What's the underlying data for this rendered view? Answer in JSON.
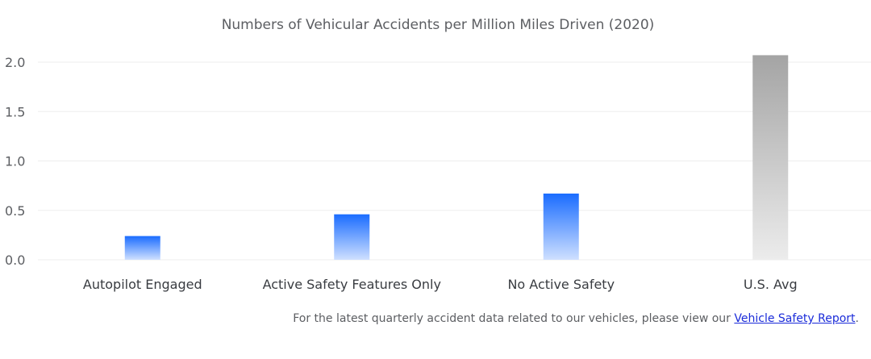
{
  "chart_data": {
    "type": "bar",
    "title": "Numbers of Vehicular Accidents per Million Miles Driven (2020)",
    "xlabel": "",
    "ylabel": "",
    "categories": [
      "Autopilot Engaged",
      "Active Safety Features Only",
      "No Active Safety",
      "U.S. Avg"
    ],
    "values": [
      0.24,
      0.46,
      0.67,
      2.07
    ],
    "ylim": [
      0,
      2.0
    ],
    "yticks": [
      "0.0",
      "0.5",
      "1.0",
      "1.5",
      "2.0"
    ],
    "grid": true,
    "colors": {
      "tesla_top": "#1a6cff",
      "tesla_bottom": "#cfe0ff",
      "avg_top": "#a4a4a4",
      "avg_bottom": "#ececec"
    }
  },
  "footnote": {
    "text": "For the latest quarterly accident data related to our vehicles, please view our ",
    "link_text": "Vehicle Safety Report",
    "end": "."
  }
}
